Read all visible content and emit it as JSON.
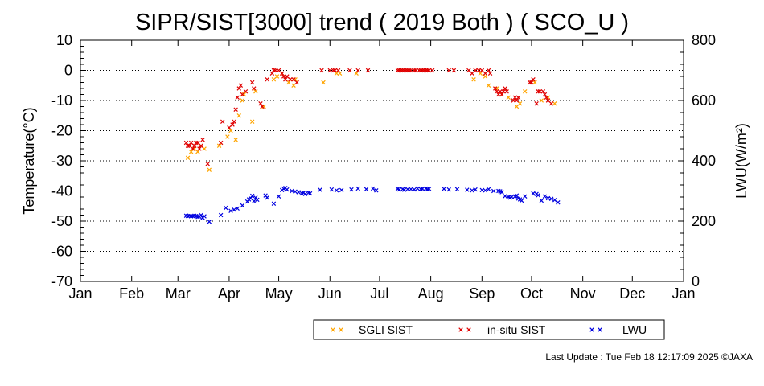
{
  "chart_data": {
    "type": "scatter",
    "title": "SIPR/SIST[3000] trend ( 2019 Both ) ( SCO_U )",
    "ylabel": "Temperature(°C)",
    "y2label": "LWU(W/m²)",
    "ylim": [
      -70,
      10
    ],
    "y2lim": [
      0,
      800
    ],
    "yticks": [
      "10",
      "0",
      "-10",
      "-20",
      "-30",
      "-40",
      "-50",
      "-60",
      "-70"
    ],
    "y2ticks": [
      "800",
      "600",
      "400",
      "200",
      "0"
    ],
    "xticks": [
      "Jan",
      "Feb",
      "Mar",
      "Apr",
      "May",
      "Jun",
      "Jul",
      "Aug",
      "Sep",
      "Oct",
      "Nov",
      "Dec",
      "Jan"
    ],
    "grid": "horizontal-dotted",
    "legend_position": "bottom-right",
    "series": [
      {
        "name": "SGLI SIST",
        "color": "#ffa500",
        "axis": "left",
        "x_unit": "day of year",
        "points": [
          [
            66,
            -29
          ],
          [
            68,
            -27
          ],
          [
            70,
            -26
          ],
          [
            72,
            -27
          ],
          [
            74,
            -25
          ],
          [
            76,
            -26
          ],
          [
            79,
            -33
          ],
          [
            85,
            -25
          ],
          [
            90,
            -22
          ],
          [
            92,
            -20
          ],
          [
            95,
            -23
          ],
          [
            97,
            -15
          ],
          [
            99,
            -10
          ],
          [
            100,
            -8
          ],
          [
            105,
            -17
          ],
          [
            107,
            -7
          ],
          [
            112,
            -12
          ],
          [
            118,
            -3
          ],
          [
            120,
            -2
          ],
          [
            123,
            -1
          ],
          [
            127,
            -4
          ],
          [
            130,
            -5
          ],
          [
            131,
            -3
          ],
          [
            148,
            -4
          ],
          [
            156,
            -1
          ],
          [
            158,
            -1
          ],
          [
            168,
            -1
          ],
          [
            239,
            -3
          ],
          [
            243,
            -1
          ],
          [
            246,
            -2
          ],
          [
            248,
            -5
          ],
          [
            253,
            -6
          ],
          [
            256,
            -8
          ],
          [
            260,
            -9
          ],
          [
            265,
            -12
          ],
          [
            267,
            -11
          ],
          [
            270,
            -7
          ],
          [
            276,
            -4
          ],
          [
            280,
            -10
          ],
          [
            284,
            -9
          ],
          [
            288,
            -11
          ]
        ]
      },
      {
        "name": "in-situ SIST",
        "color": "#e00000",
        "axis": "left",
        "x_unit": "day of year",
        "points": [
          [
            65,
            -24
          ],
          [
            66,
            -25
          ],
          [
            67,
            -25
          ],
          [
            68,
            -24
          ],
          [
            69,
            -26
          ],
          [
            70,
            -25
          ],
          [
            71,
            -24
          ],
          [
            72,
            -24
          ],
          [
            73,
            -26
          ],
          [
            74,
            -25
          ],
          [
            75,
            -23
          ],
          [
            78,
            -31
          ],
          [
            86,
            -24
          ],
          [
            87,
            -17
          ],
          [
            91,
            -19
          ],
          [
            93,
            -18
          ],
          [
            94,
            -17
          ],
          [
            95,
            -13
          ],
          [
            96,
            -9
          ],
          [
            97,
            -6
          ],
          [
            98,
            -5
          ],
          [
            99,
            -8
          ],
          [
            101,
            -7
          ],
          [
            105,
            -4
          ],
          [
            106,
            -6
          ],
          [
            110,
            -11
          ],
          [
            111,
            -12
          ],
          [
            114,
            -3
          ],
          [
            117,
            -1
          ],
          [
            118,
            0
          ],
          [
            119,
            0
          ],
          [
            121,
            0
          ],
          [
            123,
            -1
          ],
          [
            124,
            -2
          ],
          [
            125,
            -3
          ],
          [
            126,
            -2
          ],
          [
            128,
            -3
          ],
          [
            130,
            -3
          ],
          [
            132,
            -4
          ],
          [
            147,
            0
          ],
          [
            152,
            0
          ],
          [
            154,
            0
          ],
          [
            155,
            0
          ],
          [
            157,
            0
          ],
          [
            164,
            0
          ],
          [
            169,
            0
          ],
          [
            175,
            0
          ],
          [
            193,
            0
          ],
          [
            194,
            0
          ],
          [
            195,
            0
          ],
          [
            196,
            0
          ],
          [
            197,
            0
          ],
          [
            198,
            0
          ],
          [
            199,
            0
          ],
          [
            200,
            0
          ],
          [
            201,
            0
          ],
          [
            203,
            0
          ],
          [
            204,
            0
          ],
          [
            206,
            0
          ],
          [
            207,
            0
          ],
          [
            208,
            0
          ],
          [
            209,
            0
          ],
          [
            210,
            0
          ],
          [
            211,
            0
          ],
          [
            212,
            0
          ],
          [
            214,
            0
          ],
          [
            224,
            0
          ],
          [
            227,
            0
          ],
          [
            236,
            0
          ],
          [
            238,
            -1
          ],
          [
            240,
            0
          ],
          [
            242,
            0
          ],
          [
            244,
            0
          ],
          [
            246,
            -1
          ],
          [
            248,
            0
          ],
          [
            249,
            -1
          ],
          [
            252,
            -6
          ],
          [
            253,
            -7
          ],
          [
            254,
            -8
          ],
          [
            255,
            -7
          ],
          [
            256,
            -8
          ],
          [
            257,
            -7
          ],
          [
            258,
            -6
          ],
          [
            259,
            -7
          ],
          [
            263,
            -10
          ],
          [
            264,
            -9
          ],
          [
            265,
            -10
          ],
          [
            266,
            -9
          ],
          [
            273,
            -4
          ],
          [
            274,
            -4
          ],
          [
            275,
            -3
          ],
          [
            277,
            -11
          ],
          [
            278,
            -7
          ],
          [
            279,
            -7
          ],
          [
            281,
            -7
          ],
          [
            282,
            -8
          ],
          [
            283,
            -9
          ],
          [
            284,
            -10
          ],
          [
            286,
            -11
          ]
        ]
      },
      {
        "name": "LWU",
        "color": "#0000e0",
        "axis": "right",
        "x_unit": "day of year",
        "points": [
          [
            65,
            218
          ],
          [
            66,
            217
          ],
          [
            67,
            218
          ],
          [
            68,
            216
          ],
          [
            69,
            217
          ],
          [
            70,
            218
          ],
          [
            71,
            217
          ],
          [
            72,
            214
          ],
          [
            73,
            215
          ],
          [
            74,
            220
          ],
          [
            75,
            211
          ],
          [
            76,
            216
          ],
          [
            79,
            198
          ],
          [
            86,
            220
          ],
          [
            89,
            244
          ],
          [
            92,
            234
          ],
          [
            94,
            238
          ],
          [
            96,
            242
          ],
          [
            99,
            252
          ],
          [
            102,
            265
          ],
          [
            103,
            272
          ],
          [
            104,
            276
          ],
          [
            105,
            284
          ],
          [
            106,
            266
          ],
          [
            107,
            278
          ],
          [
            108,
            271
          ],
          [
            113,
            285
          ],
          [
            114,
            278
          ],
          [
            118,
            258
          ],
          [
            121,
            282
          ],
          [
            123,
            303
          ],
          [
            124,
            308
          ],
          [
            125,
            310
          ],
          [
            126,
            305
          ],
          [
            129,
            300
          ],
          [
            131,
            298
          ],
          [
            133,
            296
          ],
          [
            135,
            292
          ],
          [
            136,
            294
          ],
          [
            137,
            290
          ],
          [
            139,
            294
          ],
          [
            140,
            292
          ],
          [
            146,
            304
          ],
          [
            153,
            305
          ],
          [
            156,
            302
          ],
          [
            159,
            303
          ],
          [
            165,
            305
          ],
          [
            169,
            308
          ],
          [
            174,
            306
          ],
          [
            178,
            308
          ],
          [
            180,
            302
          ],
          [
            193,
            307
          ],
          [
            194,
            305
          ],
          [
            196,
            306
          ],
          [
            197,
            304
          ],
          [
            199,
            306
          ],
          [
            201,
            306
          ],
          [
            203,
            305
          ],
          [
            205,
            308
          ],
          [
            207,
            306
          ],
          [
            208,
            307
          ],
          [
            210,
            308
          ],
          [
            211,
            306
          ],
          [
            212,
            307
          ],
          [
            221,
            307
          ],
          [
            224,
            305
          ],
          [
            229,
            306
          ],
          [
            235,
            304
          ],
          [
            238,
            302
          ],
          [
            240,
            305
          ],
          [
            244,
            303
          ],
          [
            246,
            302
          ],
          [
            248,
            306
          ],
          [
            251,
            300
          ],
          [
            254,
            300
          ],
          [
            255,
            299
          ],
          [
            256,
            296
          ],
          [
            258,
            283
          ],
          [
            260,
            280
          ],
          [
            261,
            278
          ],
          [
            262,
            280
          ],
          [
            264,
            282
          ],
          [
            265,
            285
          ],
          [
            266,
            275
          ],
          [
            267,
            272
          ],
          [
            268,
            268
          ],
          [
            270,
            282
          ],
          [
            275,
            292
          ],
          [
            277,
            290
          ],
          [
            278,
            286
          ],
          [
            280,
            268
          ],
          [
            282,
            282
          ],
          [
            284,
            276
          ],
          [
            286,
            274
          ],
          [
            288,
            270
          ],
          [
            290,
            262
          ]
        ]
      }
    ],
    "footer": "Last Update : Tue Feb 18 12:17:09 2025  ©JAXA"
  }
}
